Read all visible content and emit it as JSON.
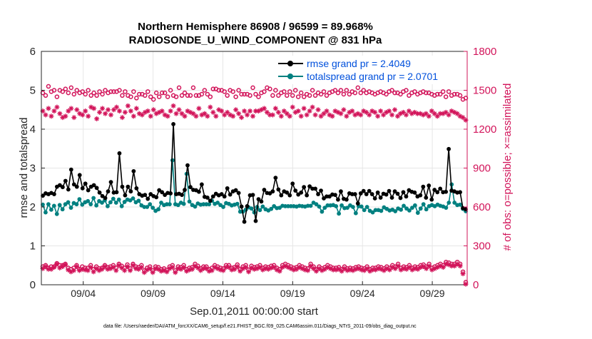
{
  "chart_data": {
    "type": "line",
    "title": "Northern Hemisphere 86908 / 96599 = 89.968%",
    "subtitle": "RADIOSONDE_U_WIND_COMPONENT @ 831 hPa",
    "xlabel": "Sep.01,2011 00:00:00 start",
    "ylabel_left": "rmse and totalspread",
    "ylabel_right": "# of obs: o=possible; ×=assimilated",
    "footer": "data file: /Users/raeder/DAI/ATM_forcXX/CAM6_setup/f.e21.FHIST_BGC.f09_025.CAM6assim.011/Diags_NTrS_2011-09/obs_diag_output.nc",
    "xlim": [
      0,
      30.5
    ],
    "ylim_left": [
      0,
      6
    ],
    "ylim_right": [
      0,
      1800
    ],
    "xticks": [
      3,
      8,
      13,
      18,
      23,
      28
    ],
    "xtick_labels": [
      "09/04",
      "09/09",
      "09/14",
      "09/19",
      "09/24",
      "09/29"
    ],
    "yticks_left": [
      "0",
      "1",
      "2",
      "3",
      "4",
      "5",
      "6"
    ],
    "yticks_right": [
      "0",
      "300",
      "600",
      "900",
      "1200",
      "1500",
      "1800"
    ],
    "colors": {
      "rmse": "#000000",
      "spread": "#008080",
      "obs": "#d2145a",
      "grid": "#e6e6e6"
    },
    "legend": [
      {
        "name": "rmse grand pr = 2.4049",
        "color": "#000000"
      },
      {
        "name": "totalspread grand pr = 2.0701",
        "color": "#008080"
      }
    ],
    "series": [
      {
        "name": "rmse",
        "axis": "left",
        "values": [
          2.29,
          2.35,
          2.33,
          2.36,
          2.33,
          2.52,
          2.56,
          2.51,
          2.67,
          2.45,
          2.96,
          2.58,
          2.52,
          2.82,
          2.48,
          2.6,
          2.43,
          2.52,
          2.56,
          2.49,
          2.37,
          2.28,
          2.23,
          2.4,
          2.64,
          2.37,
          2.38,
          3.38,
          2.52,
          2.3,
          2.52,
          2.4,
          2.92,
          2.48,
          2.33,
          2.29,
          2.31,
          2.21,
          2.33,
          2.28,
          2.25,
          2.43,
          2.38,
          2.31,
          2.36,
          2.35,
          4.13,
          2.33,
          2.34,
          2.31,
          2.44,
          3.07,
          2.51,
          2.44,
          2.43,
          2.39,
          2.58,
          2.26,
          2.24,
          2.16,
          2.27,
          2.34,
          2.3,
          2.33,
          2.27,
          2.48,
          2.32,
          2.4,
          2.43,
          2.36,
          2.01,
          1.62,
          2.02,
          2.3,
          2.31,
          1.64,
          2.2,
          2.14,
          2.44,
          2.36,
          2.35,
          2.4,
          2.75,
          2.45,
          2.3,
          2.4,
          2.37,
          2.3,
          2.6,
          2.42,
          2.32,
          2.37,
          2.51,
          2.3,
          2.53,
          2.47,
          2.47,
          2.33,
          2.42,
          2.22,
          2.27,
          2.27,
          2.32,
          2.31,
          2.19,
          2.4,
          2.21,
          2.19,
          2.35,
          2.33,
          2.33,
          2.09,
          2.35,
          2.41,
          2.33,
          2.41,
          2.33,
          2.22,
          2.37,
          2.24,
          2.34,
          2.32,
          2.41,
          2.24,
          2.4,
          2.34,
          2.23,
          2.38,
          2.27,
          2.43,
          2.39,
          2.37,
          2.27,
          2.3,
          2.52,
          2.24,
          2.55,
          2.19,
          2.44,
          2.38,
          2.47,
          2.38,
          2.39,
          3.49,
          2.42,
          2.4,
          2.37,
          2.38,
          1.97,
          1.94
        ]
      },
      {
        "name": "totalspread",
        "axis": "left",
        "values": [
          2.06,
          1.86,
          2.07,
          1.93,
          2.03,
          1.82,
          2.05,
          1.94,
          2.07,
          2.12,
          1.98,
          2.1,
          2.07,
          2.2,
          2.06,
          2.12,
          2.15,
          2.07,
          2.23,
          2.04,
          2.15,
          2.11,
          2.17,
          2.02,
          2.12,
          2.21,
          2.11,
          2.19,
          2.02,
          2.13,
          2.19,
          2.17,
          2.22,
          2.12,
          2.16,
          2.04,
          2.0,
          2.0,
          2.07,
          1.98,
          1.9,
          1.94,
          2.11,
          2.05,
          2.07,
          2.07,
          3.2,
          2.07,
          2.05,
          2.11,
          2.08,
          2.85,
          2.14,
          2.05,
          2.01,
          2.09,
          2.06,
          2.07,
          2.07,
          2.07,
          2.16,
          2.08,
          2.11,
          2.05,
          2.0,
          2.1,
          2.08,
          2.04,
          2.06,
          2.08,
          1.88,
          1.88,
          1.93,
          1.99,
          1.96,
          1.86,
          2.0,
          1.92,
          2.01,
          1.94,
          1.91,
          1.95,
          2.02,
          1.97,
          1.98,
          2.03,
          2.02,
          2.02,
          2.02,
          2.02,
          2.01,
          2.03,
          2.02,
          2.01,
          2.03,
          2.03,
          2.11,
          2.07,
          2.01,
          1.88,
          1.98,
          2.04,
          2.04,
          2.05,
          2.02,
          1.83,
          2.04,
          1.97,
          1.98,
          2.04,
          2.0,
          1.84,
          2.02,
          2.01,
          1.92,
          2.0,
          1.9,
          1.86,
          1.92,
          1.92,
          1.9,
          1.99,
          1.95,
          1.91,
          1.93,
          1.89,
          1.96,
          1.93,
          2.03,
          1.96,
          1.91,
          1.98,
          2.04,
          1.85,
          1.96,
          2.07,
          1.94,
          2.02,
          2.05,
          2.02,
          2.06,
          2.03,
          2.01,
          1.98,
          2.11,
          2.58,
          2.11,
          2.05,
          2.06,
          1.95,
          1.89
        ]
      },
      {
        "name": "obs possible",
        "axis": "right",
        "marker": "o",
        "values": [
          1480,
          1460,
          1530,
          1490,
          1500,
          1450,
          1500,
          1490,
          1510,
          1480,
          1520,
          1470,
          1500,
          1480,
          1490,
          1470,
          1500,
          1460,
          1480,
          1460,
          1490,
          1470,
          1500,
          1480,
          1490,
          1490,
          1490,
          1500,
          1460,
          1490,
          1460,
          1450,
          1490,
          1440,
          1470,
          1470,
          1460,
          1490,
          1450,
          1430,
          1480,
          1450,
          1480,
          1480,
          1450,
          1500,
          1460,
          1450,
          1520,
          1460,
          1480,
          1460,
          1460,
          1520,
          1460,
          1460,
          1470,
          1500,
          1470,
          1450,
          1510,
          1510,
          1500,
          1500,
          1490,
          1460,
          1500,
          1490,
          1450,
          1500,
          1470,
          1470,
          1470,
          1460,
          1520,
          1470,
          1450,
          1480,
          1490,
          1520,
          1510,
          1460,
          1500,
          1460,
          1480,
          1490,
          1460,
          1490,
          1460,
          1500,
          1450,
          1480,
          1450,
          1470,
          1460,
          1500,
          1460,
          1480,
          1470,
          1490,
          1460,
          1480,
          1490,
          1500,
          1480,
          1500,
          1470,
          1500,
          1470,
          1490,
          1480,
          1520,
          1480,
          1500,
          1480,
          1490,
          1480,
          1470,
          1480,
          1490,
          1480,
          1470,
          1490,
          1500,
          1480,
          1480,
          1470,
          1490,
          1500,
          1460,
          1480,
          1490,
          1470,
          1480,
          1490,
          1480,
          1480,
          1470,
          1460,
          1470,
          1470,
          1490,
          1450,
          1490,
          1460,
          1470,
          1470,
          1460,
          1430,
          1440
        ]
      },
      {
        "name": "obs assimilated",
        "axis": "right",
        "marker": "*",
        "values": [
          1340,
          1310,
          1360,
          1300,
          1340,
          1370,
          1320,
          1290,
          1300,
          1340,
          1360,
          1290,
          1350,
          1320,
          1310,
          1340,
          1300,
          1370,
          1360,
          1280,
          1330,
          1360,
          1320,
          1350,
          1310,
          1350,
          1370,
          1340,
          1290,
          1330,
          1380,
          1340,
          1300,
          1360,
          1320,
          1310,
          1330,
          1340,
          1300,
          1350,
          1320,
          1330,
          1340,
          1310,
          1300,
          1340,
          1380,
          1320,
          1350,
          1320,
          1300,
          1340,
          1330,
          1320,
          1300,
          1360,
          1310,
          1320,
          1300,
          1370,
          1330,
          1300,
          1350,
          1340,
          1310,
          1330,
          1310,
          1300,
          1350,
          1320,
          1290,
          1340,
          1310,
          1340,
          1300,
          1340,
          1340,
          1350,
          1360,
          1330,
          1310,
          1310,
          1360,
          1330,
          1300,
          1340,
          1320,
          1300,
          1370,
          1330,
          1340,
          1300,
          1360,
          1310,
          1340,
          1370,
          1310,
          1350,
          1300,
          1320,
          1340,
          1310,
          1300,
          1340,
          1330,
          1320,
          1350,
          1300,
          1330,
          1340,
          1310,
          1320,
          1310,
          1340,
          1330,
          1310,
          1340,
          1330,
          1300,
          1340,
          1310,
          1330,
          1340,
          1310,
          1350,
          1300,
          1320,
          1330,
          1310,
          1340,
          1320,
          1330,
          1320,
          1320,
          1310,
          1320,
          1300,
          1340,
          1320,
          1300,
          1320,
          1320,
          1330,
          1310,
          1340,
          1330,
          1320,
          1300,
          1290,
          1270
        ]
      },
      {
        "name": "obs possible (low)",
        "axis": "right",
        "marker": "o",
        "values": [
          140,
          150,
          130,
          140,
          140,
          165,
          150,
          150,
          160,
          130,
          120,
          130,
          150,
          120,
          140,
          130,
          130,
          150,
          120,
          140,
          125,
          130,
          150,
          135,
          140,
          150,
          130,
          160,
          145,
          130,
          155,
          125,
          160,
          140,
          135,
          150,
          110,
          130,
          140,
          110,
          140,
          135,
          120,
          125,
          115,
          140,
          150,
          110,
          140,
          135,
          150,
          120,
          130,
          135,
          160,
          145,
          125,
          140,
          140,
          120,
          130,
          150,
          140,
          130,
          125,
          150,
          150,
          130,
          135,
          155,
          120,
          140,
          150,
          115,
          145,
          135,
          140,
          150,
          130,
          140,
          135,
          145,
          150,
          130,
          120,
          150,
          160,
          150,
          140,
          130,
          135,
          150,
          140,
          130,
          125,
          160,
          140,
          120,
          140,
          125,
          135,
          150,
          140,
          130,
          130,
          135,
          120,
          140,
          125,
          130,
          125,
          135,
          140,
          130,
          125,
          140,
          120,
          130,
          130,
          140,
          135,
          125,
          140,
          130,
          150,
          140,
          160,
          130,
          140,
          135,
          150,
          130,
          140,
          135,
          150,
          155,
          140,
          160,
          130,
          140,
          150,
          160,
          150,
          175,
          170,
          160,
          160,
          175,
          160,
          100,
          20
        ]
      },
      {
        "name": "obs assimilated (low)",
        "axis": "right",
        "marker": "*",
        "values": [
          125,
          140,
          120,
          120,
          135,
          160,
          130,
          140,
          155,
          115,
          100,
          110,
          140,
          110,
          120,
          115,
          110,
          135,
          100,
          125,
          110,
          120,
          140,
          120,
          125,
          135,
          110,
          150,
          130,
          110,
          140,
          110,
          150,
          125,
          120,
          135,
          95,
          115,
          125,
          95,
          125,
          120,
          105,
          110,
          100,
          125,
          135,
          95,
          125,
          120,
          135,
          105,
          115,
          120,
          145,
          130,
          110,
          125,
          125,
          105,
          110,
          135,
          125,
          115,
          110,
          135,
          135,
          115,
          120,
          140,
          105,
          125,
          135,
          100,
          130,
          120,
          125,
          135,
          115,
          125,
          120,
          130,
          135,
          115,
          105,
          135,
          145,
          135,
          125,
          115,
          120,
          135,
          125,
          115,
          110,
          145,
          125,
          105,
          125,
          110,
          120,
          135,
          125,
          115,
          115,
          120,
          105,
          125,
          110,
          115,
          110,
          120,
          125,
          115,
          110,
          125,
          105,
          115,
          115,
          125,
          120,
          110,
          125,
          115,
          135,
          125,
          145,
          115,
          125,
          120,
          135,
          115,
          125,
          120,
          135,
          140,
          125,
          145,
          115,
          125,
          135,
          145,
          135,
          160,
          155,
          145,
          145,
          160,
          145,
          85,
          5
        ]
      }
    ]
  }
}
